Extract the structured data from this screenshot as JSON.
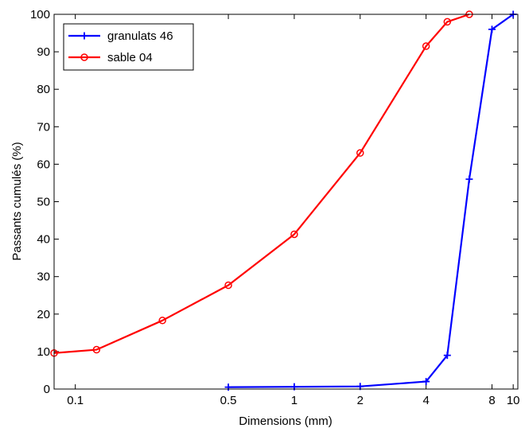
{
  "chart_data": {
    "type": "line",
    "title": "",
    "xlabel": "Dimensions (mm)",
    "ylabel": "Passants cumulés (%)",
    "x_scale": "log",
    "xlim": [
      0.08,
      10.5
    ],
    "ylim": [
      0,
      100
    ],
    "x_ticks": [
      {
        "value": 0.1,
        "label": "0.1"
      },
      {
        "value": 0.5,
        "label": "0.5"
      },
      {
        "value": 1,
        "label": "1"
      },
      {
        "value": 2,
        "label": "2"
      },
      {
        "value": 4,
        "label": "4"
      },
      {
        "value": 8,
        "label": "8"
      },
      {
        "value": 10,
        "label": "10"
      }
    ],
    "y_ticks": [
      {
        "value": 0,
        "label": "0"
      },
      {
        "value": 10,
        "label": "10"
      },
      {
        "value": 20,
        "label": "20"
      },
      {
        "value": 30,
        "label": "30"
      },
      {
        "value": 40,
        "label": "40"
      },
      {
        "value": 50,
        "label": "50"
      },
      {
        "value": 60,
        "label": "60"
      },
      {
        "value": 70,
        "label": "70"
      },
      {
        "value": 80,
        "label": "80"
      },
      {
        "value": 90,
        "label": "90"
      },
      {
        "value": 100,
        "label": "100"
      }
    ],
    "grid": false,
    "legend_position": "top-left",
    "series": [
      {
        "name": "granulats 46",
        "color": "#0000ff",
        "marker": "plus",
        "points": [
          {
            "x": 0.5,
            "y": 0.5
          },
          {
            "x": 1.0,
            "y": 0.6
          },
          {
            "x": 2.0,
            "y": 0.7
          },
          {
            "x": 4.0,
            "y": 2.0
          },
          {
            "x": 5.0,
            "y": 9.0
          },
          {
            "x": 6.3,
            "y": 56.0
          },
          {
            "x": 8.0,
            "y": 96.0
          },
          {
            "x": 10.0,
            "y": 100.0
          }
        ]
      },
      {
        "name": "sable 04",
        "color": "#ff0000",
        "marker": "circle",
        "points": [
          {
            "x": 0.08,
            "y": 9.6
          },
          {
            "x": 0.125,
            "y": 10.5
          },
          {
            "x": 0.25,
            "y": 18.3
          },
          {
            "x": 0.5,
            "y": 27.7
          },
          {
            "x": 1.0,
            "y": 41.3
          },
          {
            "x": 2.0,
            "y": 63.0
          },
          {
            "x": 4.0,
            "y": 91.5
          },
          {
            "x": 5.0,
            "y": 98.0
          },
          {
            "x": 6.3,
            "y": 100.0
          }
        ]
      }
    ]
  }
}
